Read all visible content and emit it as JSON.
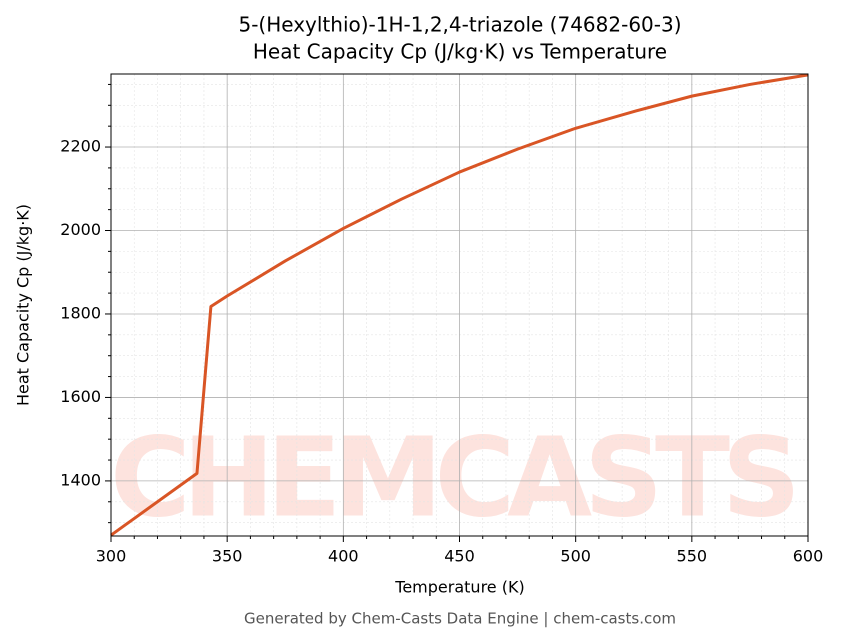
{
  "chart_data": {
    "type": "line",
    "title": "5-(Hexylthio)-1H-1,2,4-triazole (74682-60-3)",
    "subtitle": "Heat Capacity Cp (J/kg·K) vs Temperature",
    "xlabel": "Temperature (K)",
    "ylabel": "Heat Capacity Cp (J/kg·K)",
    "footer": "Generated by Chem-Casts Data Engine | chem-casts.com",
    "watermark": "CHEMCASTS",
    "series": [
      {
        "name": "Cp",
        "color": "#d95525",
        "x": [
          300,
          337,
          343,
          350,
          375,
          400,
          425,
          450,
          475,
          500,
          525,
          550,
          575,
          600
        ],
        "values": [
          1270,
          1418,
          1818,
          1843,
          1927,
          2005,
          2075,
          2140,
          2195,
          2245,
          2285,
          2322,
          2350,
          2373
        ]
      }
    ],
    "xlim": [
      300,
      600
    ],
    "ylim": [
      1268,
      2375
    ],
    "xticks": [
      300,
      350,
      400,
      450,
      500,
      550,
      600
    ],
    "yticks": [
      1400,
      1600,
      1800,
      2000,
      2200
    ],
    "xticks_minor": [
      310,
      320,
      330,
      340,
      360,
      370,
      380,
      390,
      410,
      420,
      430,
      440,
      460,
      470,
      480,
      490,
      510,
      520,
      530,
      540,
      560,
      570,
      580,
      590
    ],
    "yticks_minor": [
      1300,
      1350,
      1450,
      1500,
      1550,
      1650,
      1700,
      1750,
      1850,
      1900,
      1950,
      2050,
      2100,
      2150,
      2250,
      2300,
      2350
    ],
    "grid": true
  }
}
